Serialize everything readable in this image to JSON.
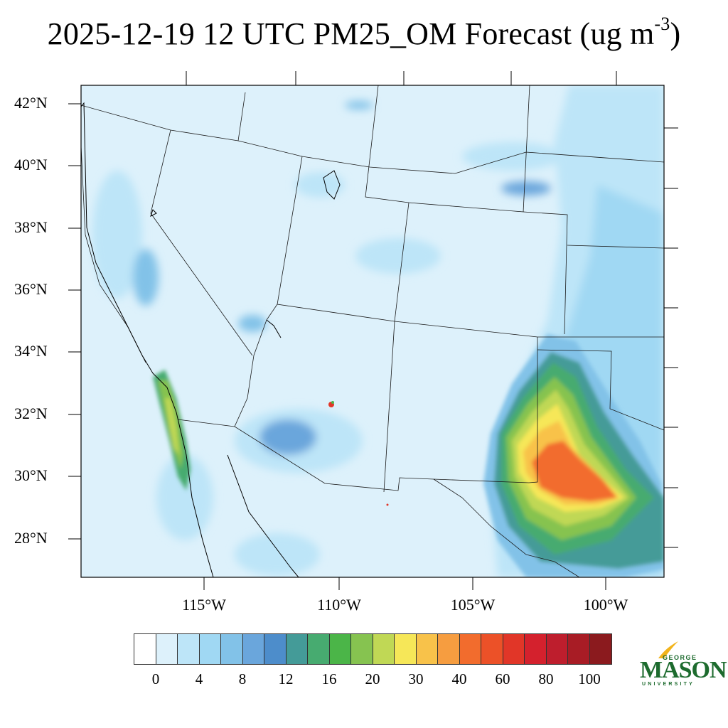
{
  "title": {
    "main": "2025-12-19 12 UTC PM25_OM Forecast (ug m",
    "exponent": "-3",
    "closing": ")"
  },
  "latitude_labels": [
    "42°N",
    "40°N",
    "38°N",
    "36°N",
    "34°N",
    "32°N",
    "30°N",
    "28°N"
  ],
  "longitude_labels": [
    "115°W",
    "110°W",
    "105°W",
    "100°W"
  ],
  "colorbar": {
    "colors": [
      "#ffffff",
      "#ddf1fb",
      "#bde5f8",
      "#a0d8f3",
      "#82c2e8",
      "#6aa6dc",
      "#4d8dcb",
      "#449b98",
      "#47ab70",
      "#4bb548",
      "#86c350",
      "#c0d855",
      "#f6e758",
      "#f8c24a",
      "#f69d40",
      "#f26c2d",
      "#ec5128",
      "#e13628",
      "#d4212d",
      "#be1e2d",
      "#a81c25",
      "#8b1a1e"
    ],
    "labels": [
      "0",
      "4",
      "8",
      "12",
      "16",
      "20",
      "30",
      "40",
      "60",
      "80",
      "100"
    ]
  },
  "logo": {
    "top": "GEORGE",
    "main": "MASON",
    "bottom": "UNIVERSITY"
  }
}
